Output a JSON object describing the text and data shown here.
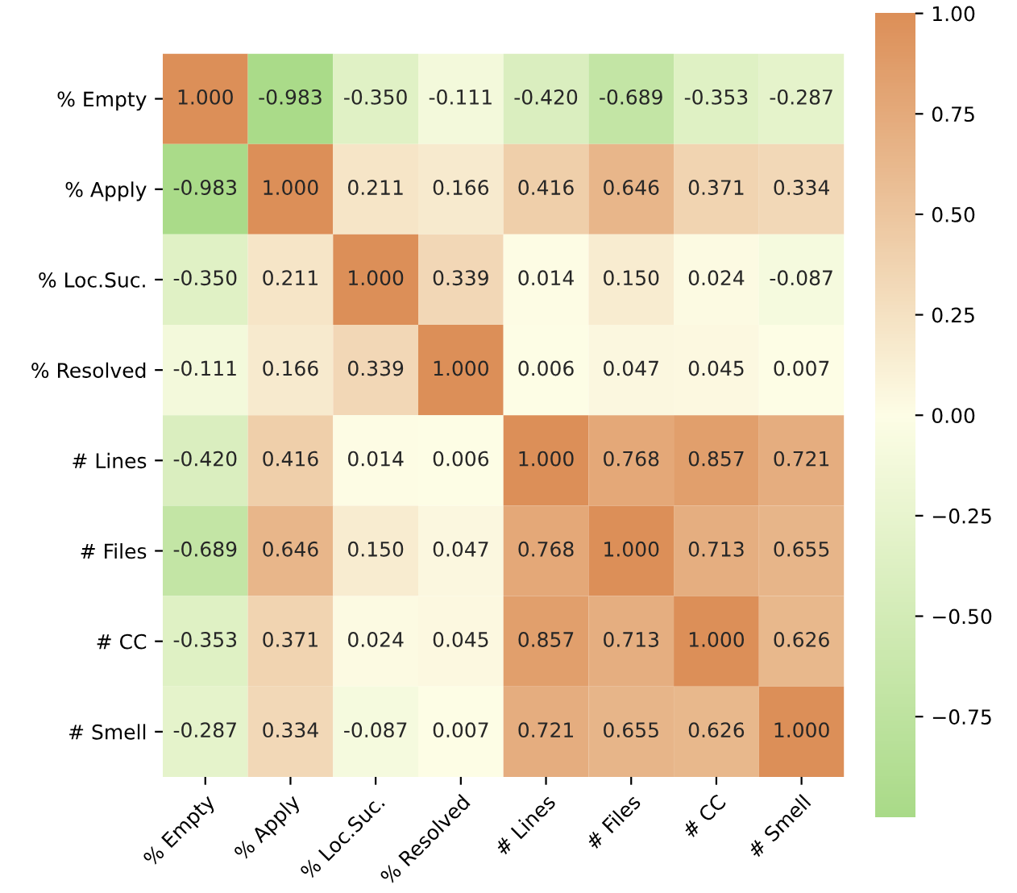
{
  "chart_data": {
    "type": "heatmap",
    "categories": [
      "% Empty",
      "% Apply",
      "% Loc.Suc.",
      "% Resolved",
      "# Lines",
      "# Files",
      "# CC",
      "# Smell"
    ],
    "y_categories": [
      "% Empty",
      "% Apply",
      "% Loc.Suc.",
      "% Resolved",
      "# Lines",
      "# Files",
      "# CC",
      "# Smell"
    ],
    "cells": [
      [
        1.0,
        -0.983,
        -0.35,
        -0.111,
        -0.42,
        -0.689,
        -0.353,
        -0.287
      ],
      [
        -0.983,
        1.0,
        0.211,
        0.166,
        0.416,
        0.646,
        0.371,
        0.334
      ],
      [
        -0.35,
        0.211,
        1.0,
        0.339,
        0.014,
        0.15,
        0.024,
        -0.087
      ],
      [
        -0.111,
        0.166,
        0.339,
        1.0,
        0.006,
        0.047,
        0.045,
        0.007
      ],
      [
        -0.42,
        0.416,
        0.014,
        0.006,
        1.0,
        0.768,
        0.857,
        0.721
      ],
      [
        -0.689,
        0.646,
        0.15,
        0.047,
        0.768,
        1.0,
        0.713,
        0.655
      ],
      [
        -0.353,
        0.371,
        0.024,
        0.045,
        0.857,
        0.713,
        1.0,
        0.626
      ],
      [
        -0.287,
        0.334,
        -0.087,
        0.007,
        0.721,
        0.655,
        0.626,
        1.0
      ]
    ],
    "cell_labels": [
      [
        "1.000",
        "-0.983",
        "-0.350",
        "-0.111",
        "-0.420",
        "-0.689",
        "-0.353",
        "-0.287"
      ],
      [
        "-0.983",
        "1.000",
        "0.211",
        "0.166",
        "0.416",
        "0.646",
        "0.371",
        "0.334"
      ],
      [
        "-0.350",
        "0.211",
        "1.000",
        "0.339",
        "0.014",
        "0.150",
        "0.024",
        "-0.087"
      ],
      [
        "-0.111",
        "0.166",
        "0.339",
        "1.000",
        "0.006",
        "0.047",
        "0.045",
        "0.007"
      ],
      [
        "-0.420",
        "0.416",
        "0.014",
        "0.006",
        "1.000",
        "0.768",
        "0.857",
        "0.721"
      ],
      [
        "-0.689",
        "0.646",
        "0.150",
        "0.047",
        "0.768",
        "1.000",
        "0.713",
        "0.655"
      ],
      [
        "-0.353",
        "0.371",
        "0.024",
        "0.045",
        "0.857",
        "0.713",
        "1.000",
        "0.626"
      ],
      [
        "-0.287",
        "0.334",
        "-0.087",
        "0.007",
        "0.721",
        "0.655",
        "0.626",
        "1.000"
      ]
    ],
    "clim": [
      -1,
      1
    ],
    "cticks": [
      {
        "value": -0.75,
        "label": "−0.75"
      },
      {
        "value": -0.5,
        "label": "−0.50"
      },
      {
        "value": -0.25,
        "label": "−0.25"
      },
      {
        "value": 0,
        "label": "0.00"
      },
      {
        "value": 0.25,
        "label": "0.25"
      },
      {
        "value": 0.5,
        "label": "0.50"
      },
      {
        "value": 0.75,
        "label": "0.75"
      },
      {
        "value": 1,
        "label": "1.00"
      }
    ]
  }
}
